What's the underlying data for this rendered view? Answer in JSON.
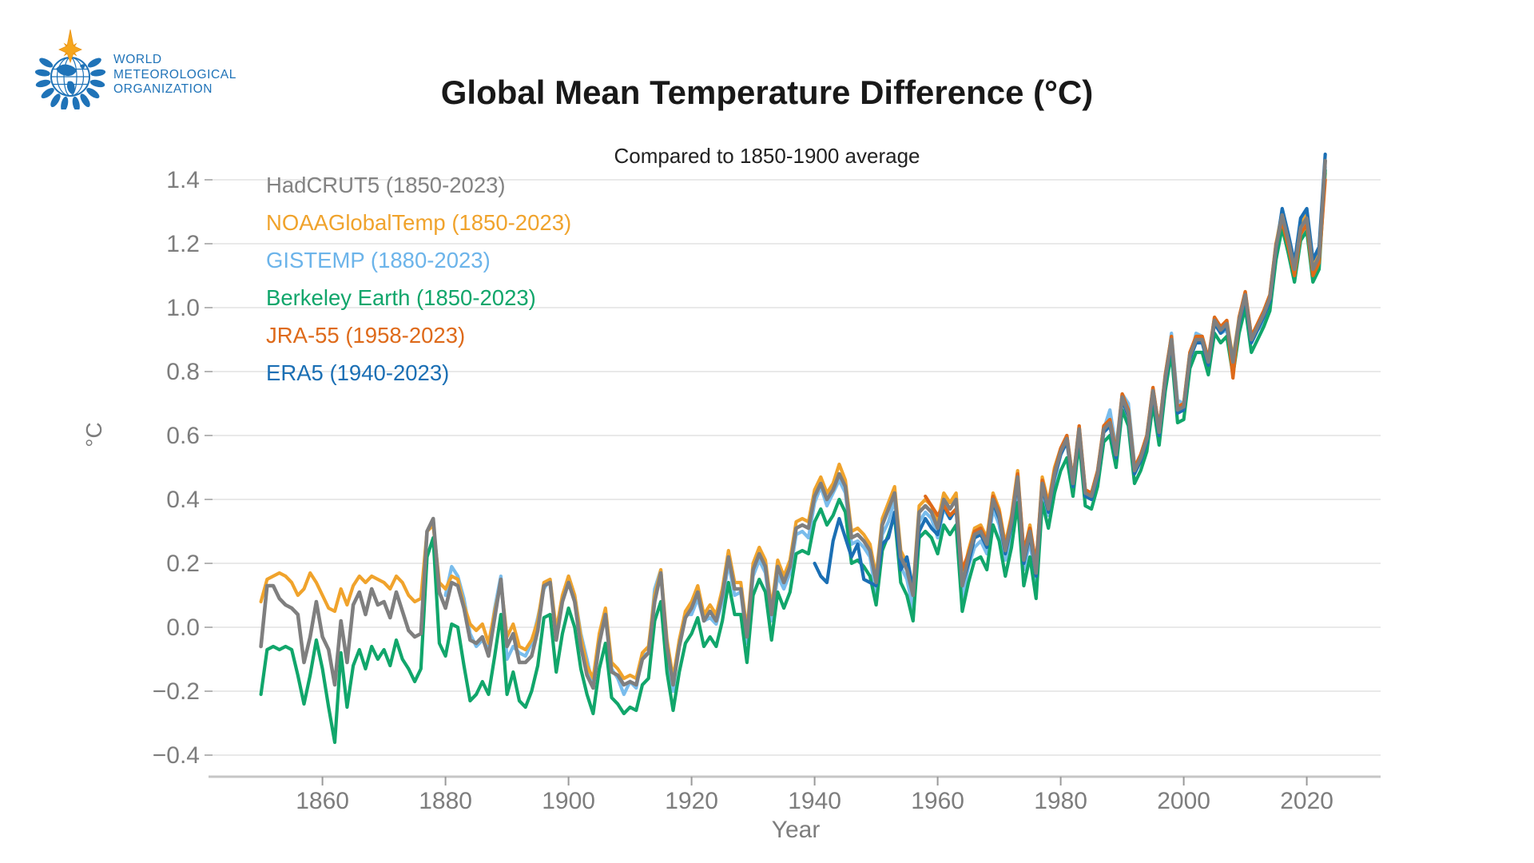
{
  "logo": {
    "org_lines": [
      "WORLD",
      "METEOROLOGICAL",
      "ORGANIZATION"
    ],
    "emblem_colors": {
      "blue": "#1F73B8",
      "gold": "#F6A61D",
      "gold_dark": "#EF9C1A"
    }
  },
  "title": "Global Mean Temperature Difference (°C)",
  "subtitle": "Compared to 1850-1900 average",
  "legend": [
    {
      "label": "HadCRUT5 (1850-2023)",
      "color": "#838383"
    },
    {
      "label": "NOAAGlobalTemp (1850-2023)",
      "color": "#F0A32C"
    },
    {
      "label": "GISTEMP (1880-2023)",
      "color": "#6CB4EA"
    },
    {
      "label": "Berkeley Earth (1850-2023)",
      "color": "#11A66B"
    },
    {
      "label": "JRA-55 (1958-2023)",
      "color": "#DE6A1A"
    },
    {
      "label": "ERA5 (1940-2023)",
      "color": "#1B6FB4"
    }
  ],
  "axes": {
    "x": {
      "label": "Year",
      "ticks": [
        1860,
        1880,
        1900,
        1920,
        1940,
        1960,
        1980,
        2000,
        2020
      ],
      "range": [
        1842,
        2032
      ]
    },
    "y": {
      "label": "°C",
      "ticks": [
        1.4,
        1.2,
        1.0,
        0.8,
        0.6,
        0.4,
        0.2,
        0.0,
        -0.2,
        -0.4
      ],
      "tick_labels": [
        "1.4",
        "1.2",
        "1.0",
        "0.8",
        "0.6",
        "0.4",
        "0.2",
        "0.0",
        "−0.2",
        "−0.4"
      ],
      "range": [
        -0.4675,
        1.45
      ]
    }
  },
  "chart_data": {
    "type": "line",
    "title": "Global Mean Temperature Difference (°C)",
    "subtitle": "Compared to 1850-1900 average",
    "xlabel": "Year",
    "ylabel": "°C",
    "xlim": [
      1842,
      2032
    ],
    "ylim": [
      -0.4675,
      1.45
    ],
    "grid": "horizontal",
    "legend_position": "top-left",
    "series": [
      {
        "name": "HadCRUT5 (1850-2023)",
        "color": "#7f7f7f",
        "start_year": 1850,
        "values": [
          -0.06,
          0.13,
          0.13,
          0.09,
          0.07,
          0.06,
          0.04,
          -0.11,
          -0.03,
          0.08,
          -0.03,
          -0.07,
          -0.18,
          0.02,
          -0.11,
          0.07,
          0.11,
          0.04,
          0.12,
          0.07,
          0.08,
          0.03,
          0.11,
          0.05,
          -0.01,
          -0.03,
          -0.02,
          0.3,
          0.34,
          0.11,
          0.06,
          0.14,
          0.13,
          0.06,
          -0.04,
          -0.05,
          -0.03,
          -0.09,
          0.03,
          0.15,
          -0.06,
          -0.02,
          -0.11,
          -0.11,
          -0.09,
          -0.01,
          0.13,
          0.14,
          -0.04,
          0.08,
          0.14,
          0.08,
          -0.06,
          -0.15,
          -0.19,
          -0.05,
          0.04,
          -0.14,
          -0.15,
          -0.18,
          -0.17,
          -0.18,
          -0.1,
          -0.08,
          0.08,
          0.17,
          -0.06,
          -0.18,
          -0.06,
          0.03,
          0.06,
          0.11,
          0.02,
          0.05,
          0.02,
          0.1,
          0.22,
          0.12,
          0.12,
          -0.03,
          0.18,
          0.23,
          0.19,
          0.04,
          0.19,
          0.14,
          0.19,
          0.31,
          0.32,
          0.31,
          0.41,
          0.45,
          0.4,
          0.43,
          0.48,
          0.44,
          0.28,
          0.29,
          0.27,
          0.24,
          0.14,
          0.32,
          0.37,
          0.42,
          0.22,
          0.18,
          0.1,
          0.36,
          0.38,
          0.36,
          0.31,
          0.4,
          0.37,
          0.4,
          0.13,
          0.22,
          0.29,
          0.3,
          0.26,
          0.4,
          0.35,
          0.24,
          0.33,
          0.47,
          0.21,
          0.3,
          0.17,
          0.45,
          0.37,
          0.48,
          0.55,
          0.59,
          0.45,
          0.62,
          0.42,
          0.41,
          0.48,
          0.62,
          0.64,
          0.54,
          0.72,
          0.67,
          0.49,
          0.53,
          0.59,
          0.74,
          0.61,
          0.78,
          0.9,
          0.68,
          0.69,
          0.85,
          0.9,
          0.9,
          0.83,
          0.96,
          0.93,
          0.95,
          0.83,
          0.96,
          1.04,
          0.9,
          0.94,
          0.98,
          1.03,
          1.19,
          1.29,
          1.21,
          1.12,
          1.25,
          1.28,
          1.12,
          1.16,
          1.46
        ]
      },
      {
        "name": "NOAAGlobalTemp (1850-2023)",
        "color": "#F0A32C",
        "start_year": 1850,
        "values": [
          0.08,
          0.15,
          0.16,
          0.17,
          0.16,
          0.14,
          0.1,
          0.12,
          0.17,
          0.14,
          0.1,
          0.06,
          0.05,
          0.12,
          0.07,
          0.13,
          0.16,
          0.14,
          0.16,
          0.15,
          0.14,
          0.12,
          0.16,
          0.14,
          0.1,
          0.08,
          0.09,
          0.3,
          0.32,
          0.14,
          0.12,
          0.16,
          0.15,
          0.07,
          0.01,
          -0.01,
          0.01,
          -0.05,
          0.05,
          0.14,
          -0.03,
          0.01,
          -0.06,
          -0.07,
          -0.04,
          0.02,
          0.14,
          0.15,
          -0.01,
          0.1,
          0.16,
          0.1,
          -0.03,
          -0.12,
          -0.16,
          -0.02,
          0.06,
          -0.11,
          -0.13,
          -0.16,
          -0.15,
          -0.16,
          -0.08,
          -0.06,
          0.1,
          0.18,
          -0.04,
          -0.16,
          -0.04,
          0.05,
          0.08,
          0.13,
          0.04,
          0.07,
          0.04,
          0.12,
          0.24,
          0.14,
          0.14,
          -0.01,
          0.2,
          0.25,
          0.21,
          0.06,
          0.21,
          0.16,
          0.21,
          0.33,
          0.34,
          0.33,
          0.43,
          0.47,
          0.42,
          0.45,
          0.51,
          0.46,
          0.3,
          0.31,
          0.29,
          0.26,
          0.16,
          0.34,
          0.39,
          0.44,
          0.24,
          0.2,
          0.12,
          0.38,
          0.4,
          0.38,
          0.33,
          0.42,
          0.39,
          0.42,
          0.15,
          0.24,
          0.31,
          0.32,
          0.28,
          0.42,
          0.37,
          0.26,
          0.35,
          0.49,
          0.23,
          0.32,
          0.19,
          0.47,
          0.39,
          0.5,
          0.56,
          0.6,
          0.46,
          0.63,
          0.43,
          0.42,
          0.49,
          0.63,
          0.65,
          0.55,
          0.73,
          0.68,
          0.5,
          0.54,
          0.6,
          0.75,
          0.62,
          0.79,
          0.91,
          0.69,
          0.7,
          0.86,
          0.91,
          0.91,
          0.84,
          0.97,
          0.94,
          0.96,
          0.84,
          0.97,
          1.05,
          0.91,
          0.95,
          0.99,
          1.04,
          1.2,
          1.3,
          1.22,
          1.13,
          1.26,
          1.29,
          1.13,
          1.17,
          1.42
        ]
      },
      {
        "name": "GISTEMP (1880-2023)",
        "color": "#79BCEC",
        "start_year": 1880,
        "values": [
          0.1,
          0.19,
          0.16,
          0.09,
          -0.02,
          -0.06,
          -0.04,
          -0.07,
          0.06,
          0.16,
          -0.1,
          -0.06,
          -0.08,
          -0.09,
          -0.05,
          0.03,
          0.12,
          0.15,
          -0.02,
          0.09,
          0.16,
          0.1,
          -0.02,
          -0.1,
          -0.19,
          -0.04,
          0.03,
          -0.13,
          -0.16,
          -0.21,
          -0.17,
          -0.19,
          -0.09,
          -0.08,
          0.12,
          0.18,
          -0.08,
          -0.2,
          -0.04,
          0.04,
          0.04,
          0.09,
          0.02,
          0.03,
          0.01,
          0.08,
          0.2,
          0.1,
          0.11,
          -0.05,
          0.16,
          0.21,
          0.17,
          0.02,
          0.16,
          0.12,
          0.17,
          0.29,
          0.3,
          0.28,
          0.39,
          0.44,
          0.38,
          0.42,
          0.46,
          0.42,
          0.26,
          0.27,
          0.25,
          0.22,
          0.1,
          0.29,
          0.33,
          0.4,
          0.19,
          0.15,
          0.06,
          0.33,
          0.36,
          0.34,
          0.28,
          0.37,
          0.34,
          0.37,
          0.09,
          0.19,
          0.25,
          0.27,
          0.23,
          0.37,
          0.32,
          0.21,
          0.3,
          0.45,
          0.18,
          0.27,
          0.13,
          0.43,
          0.35,
          0.46,
          0.54,
          0.6,
          0.43,
          0.6,
          0.43,
          0.4,
          0.47,
          0.62,
          0.68,
          0.56,
          0.73,
          0.7,
          0.51,
          0.52,
          0.6,
          0.74,
          0.63,
          0.76,
          0.92,
          0.71,
          0.7,
          0.83,
          0.92,
          0.91,
          0.83,
          0.97,
          0.92,
          0.93,
          0.82,
          0.94,
          1.01,
          0.89,
          0.93,
          0.95,
          1.02,
          1.17,
          1.3,
          1.21,
          1.13,
          1.27,
          1.3,
          1.13,
          1.17,
          1.44
        ]
      },
      {
        "name": "Berkeley Earth (1850-2023)",
        "color": "#11A66B",
        "start_year": 1850,
        "values": [
          -0.21,
          -0.07,
          -0.06,
          -0.07,
          -0.06,
          -0.07,
          -0.15,
          -0.24,
          -0.15,
          -0.04,
          -0.13,
          -0.25,
          -0.36,
          -0.08,
          -0.25,
          -0.12,
          -0.07,
          -0.13,
          -0.06,
          -0.1,
          -0.07,
          -0.12,
          -0.04,
          -0.1,
          -0.13,
          -0.17,
          -0.13,
          0.22,
          0.28,
          -0.05,
          -0.09,
          0.01,
          0.0,
          -0.12,
          -0.23,
          -0.21,
          -0.17,
          -0.21,
          -0.09,
          0.04,
          -0.21,
          -0.14,
          -0.23,
          -0.25,
          -0.2,
          -0.12,
          0.03,
          0.04,
          -0.14,
          -0.02,
          0.06,
          0.0,
          -0.13,
          -0.21,
          -0.27,
          -0.13,
          -0.05,
          -0.22,
          -0.24,
          -0.27,
          -0.25,
          -0.26,
          -0.18,
          -0.16,
          0.02,
          0.08,
          -0.14,
          -0.26,
          -0.14,
          -0.05,
          -0.02,
          0.03,
          -0.06,
          -0.03,
          -0.06,
          0.02,
          0.14,
          0.04,
          0.04,
          -0.11,
          0.1,
          0.15,
          0.11,
          -0.04,
          0.11,
          0.06,
          0.11,
          0.23,
          0.24,
          0.23,
          0.33,
          0.37,
          0.32,
          0.35,
          0.4,
          0.36,
          0.2,
          0.21,
          0.19,
          0.16,
          0.07,
          0.24,
          0.29,
          0.35,
          0.14,
          0.1,
          0.02,
          0.28,
          0.3,
          0.28,
          0.23,
          0.32,
          0.29,
          0.32,
          0.05,
          0.14,
          0.21,
          0.22,
          0.18,
          0.32,
          0.27,
          0.16,
          0.25,
          0.39,
          0.13,
          0.22,
          0.09,
          0.39,
          0.31,
          0.42,
          0.49,
          0.53,
          0.41,
          0.58,
          0.38,
          0.37,
          0.44,
          0.58,
          0.6,
          0.5,
          0.68,
          0.63,
          0.45,
          0.49,
          0.55,
          0.7,
          0.57,
          0.74,
          0.86,
          0.64,
          0.65,
          0.81,
          0.86,
          0.86,
          0.79,
          0.92,
          0.89,
          0.91,
          0.79,
          0.92,
          1.0,
          0.86,
          0.9,
          0.94,
          0.99,
          1.15,
          1.25,
          1.17,
          1.08,
          1.21,
          1.24,
          1.08,
          1.12,
          1.43
        ]
      },
      {
        "name": "JRA-55 (1958-2023)",
        "color": "#DE6A1A",
        "start_year": 1958,
        "values": [
          0.41,
          0.38,
          0.35,
          0.38,
          0.35,
          0.37,
          0.18,
          0.23,
          0.3,
          0.31,
          0.27,
          0.41,
          0.36,
          0.25,
          0.34,
          0.48,
          0.24,
          0.31,
          0.2,
          0.46,
          0.38,
          0.49,
          0.56,
          0.6,
          0.46,
          0.63,
          0.43,
          0.42,
          0.49,
          0.63,
          0.65,
          0.55,
          0.73,
          0.68,
          0.5,
          0.54,
          0.6,
          0.75,
          0.62,
          0.79,
          0.91,
          0.69,
          0.7,
          0.86,
          0.91,
          0.91,
          0.84,
          0.97,
          0.94,
          0.96,
          0.78,
          0.97,
          1.05,
          0.91,
          0.95,
          0.99,
          1.04,
          1.2,
          1.27,
          1.19,
          1.1,
          1.23,
          1.26,
          1.1,
          1.14,
          1.4
        ]
      },
      {
        "name": "ERA5 (1940-2023)",
        "color": "#1B6FB4",
        "start_year": 1940,
        "values": [
          0.2,
          0.16,
          0.14,
          0.27,
          0.34,
          0.28,
          0.22,
          0.26,
          0.15,
          0.14,
          0.13,
          0.26,
          0.28,
          0.36,
          0.18,
          0.22,
          0.12,
          0.3,
          0.34,
          0.31,
          0.29,
          0.38,
          0.34,
          0.37,
          0.13,
          0.2,
          0.28,
          0.29,
          0.25,
          0.39,
          0.34,
          0.23,
          0.32,
          0.46,
          0.2,
          0.29,
          0.16,
          0.44,
          0.36,
          0.47,
          0.54,
          0.58,
          0.44,
          0.61,
          0.41,
          0.4,
          0.47,
          0.61,
          0.63,
          0.53,
          0.71,
          0.66,
          0.48,
          0.52,
          0.58,
          0.73,
          0.6,
          0.77,
          0.89,
          0.67,
          0.68,
          0.84,
          0.89,
          0.89,
          0.82,
          0.95,
          0.92,
          0.94,
          0.82,
          0.95,
          1.03,
          0.89,
          0.93,
          0.97,
          1.02,
          1.18,
          1.31,
          1.23,
          1.14,
          1.28,
          1.31,
          1.15,
          1.19,
          1.48
        ]
      }
    ]
  }
}
